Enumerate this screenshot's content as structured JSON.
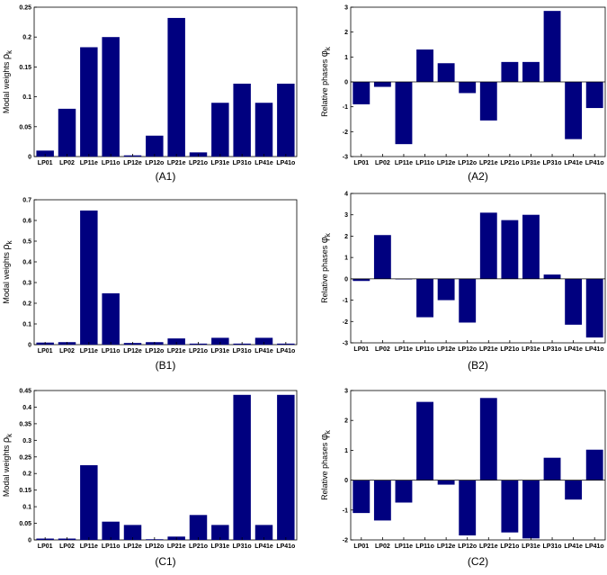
{
  "chart_data": [
    {
      "id": "A1",
      "caption": "(A1)",
      "type": "bar",
      "ylabel": "Modal weights ",
      "ysym": "ρ",
      "ysub": "k",
      "ylim": [
        0,
        0.25
      ],
      "yticks": [
        "0",
        "0.05",
        "0.1",
        "0.15",
        "0.2",
        "0.25"
      ],
      "ytickvals": [
        0,
        0.05,
        0.1,
        0.15,
        0.2,
        0.25
      ],
      "categories": [
        "LP01",
        "LP02",
        "LP11e",
        "LP11o",
        "LP12e",
        "LP12o",
        "LP21e",
        "LP21o",
        "LP31e",
        "LP31o",
        "LP41e",
        "LP41o"
      ],
      "values": [
        0.01,
        0.08,
        0.183,
        0.2,
        0.002,
        0.035,
        0.232,
        0.007,
        0.09,
        0.122,
        0.09,
        0.122
      ],
      "color": "#00007f"
    },
    {
      "id": "A2",
      "caption": "(A2)",
      "type": "bar",
      "ylabel": "Relative phases ",
      "ysym": "φ",
      "ysub": "k",
      "ylim": [
        -3,
        3
      ],
      "yticks": [
        "-3",
        "-2",
        "-1",
        "0",
        "1",
        "2",
        "3"
      ],
      "ytickvals": [
        -3,
        -2,
        -1,
        0,
        1,
        2,
        3
      ],
      "categories": [
        "LP01",
        "LP02",
        "LP11e",
        "LP11o",
        "LP12e",
        "LP12o",
        "LP21e",
        "LP21o",
        "LP31e",
        "LP31o",
        "LP41e",
        "LP41o"
      ],
      "values": [
        -0.9,
        -0.2,
        -2.5,
        1.3,
        0.75,
        -0.45,
        -1.55,
        0.8,
        0.8,
        2.85,
        -2.3,
        -1.05
      ],
      "color": "#00007f"
    },
    {
      "id": "B1",
      "caption": "(B1)",
      "type": "bar",
      "ylabel": "Modal weights ",
      "ysym": "ρ",
      "ysub": "k",
      "ylim": [
        0,
        0.7
      ],
      "yticks": [
        "0",
        "0.1",
        "0.2",
        "0.3",
        "0.4",
        "0.5",
        "0.6",
        "0.7"
      ],
      "ytickvals": [
        0,
        0.1,
        0.2,
        0.3,
        0.4,
        0.5,
        0.6,
        0.7
      ],
      "categories": [
        "LP01",
        "LP02",
        "LP11e",
        "LP11o",
        "LP12e",
        "LP12o",
        "LP21e",
        "LP21o",
        "LP31e",
        "LP31o",
        "LP41e",
        "LP41o"
      ],
      "values": [
        0.01,
        0.012,
        0.648,
        0.248,
        0.008,
        0.012,
        0.03,
        0.005,
        0.033,
        0.005,
        0.033,
        0.005
      ],
      "color": "#00007f"
    },
    {
      "id": "B2",
      "caption": "(B2)",
      "type": "bar",
      "ylabel": "Relative phases ",
      "ysym": "φ",
      "ysub": "k",
      "ylim": [
        -3,
        4
      ],
      "yticks": [
        "-3",
        "-2",
        "-1",
        "0",
        "1",
        "2",
        "3",
        "4"
      ],
      "ytickvals": [
        -3,
        -2,
        -1,
        0,
        1,
        2,
        3,
        4
      ],
      "categories": [
        "LP01",
        "LP02",
        "LP11e",
        "LP11o",
        "LP12e",
        "LP12o",
        "LP21e",
        "LP21o",
        "LP31e",
        "LP31o",
        "LP41e",
        "LP41o"
      ],
      "values": [
        -0.1,
        2.05,
        -0.02,
        -1.8,
        -1.0,
        -2.05,
        3.1,
        2.75,
        3.0,
        0.2,
        -2.15,
        -2.75
      ],
      "color": "#00007f"
    },
    {
      "id": "C1",
      "caption": "(C1)",
      "type": "bar",
      "ylabel": "Modal weights ",
      "ysym": "ρ",
      "ysub": "k",
      "ylim": [
        0,
        0.45
      ],
      "yticks": [
        "0",
        "0.05",
        "0.1",
        "0.15",
        "0.2",
        "0.25",
        "0.3",
        "0.35",
        "0.4",
        "0.45"
      ],
      "ytickvals": [
        0,
        0.05,
        0.1,
        0.15,
        0.2,
        0.25,
        0.3,
        0.35,
        0.4,
        0.45
      ],
      "categories": [
        "LP01",
        "LP02",
        "LP11e",
        "LP11o",
        "LP12e",
        "LP12o",
        "LP21e",
        "LP21o",
        "LP31e",
        "LP31o",
        "LP41e",
        "LP41o"
      ],
      "values": [
        0.004,
        0.004,
        0.225,
        0.055,
        0.045,
        0.002,
        0.01,
        0.075,
        0.045,
        0.437,
        0.045,
        0.437
      ],
      "color": "#00007f"
    },
    {
      "id": "C2",
      "caption": "(C2)",
      "type": "bar",
      "ylabel": "Relative phases ",
      "ysym": "φ",
      "ysub": "k",
      "ylim": [
        -2,
        3
      ],
      "yticks": [
        "-2",
        "-1",
        "0",
        "1",
        "2",
        "3"
      ],
      "ytickvals": [
        -2,
        -1,
        0,
        1,
        2,
        3
      ],
      "categories": [
        "LP01",
        "LP02",
        "LP11e",
        "LP11o",
        "LP12e",
        "LP12o",
        "LP21e",
        "LP21o",
        "LP31e",
        "LP31o",
        "LP41e",
        "LP41o"
      ],
      "values": [
        -1.1,
        -1.35,
        -0.75,
        2.62,
        -0.15,
        -1.85,
        2.75,
        -1.75,
        -1.95,
        0.75,
        -0.65,
        1.02
      ],
      "color": "#00007f"
    }
  ]
}
